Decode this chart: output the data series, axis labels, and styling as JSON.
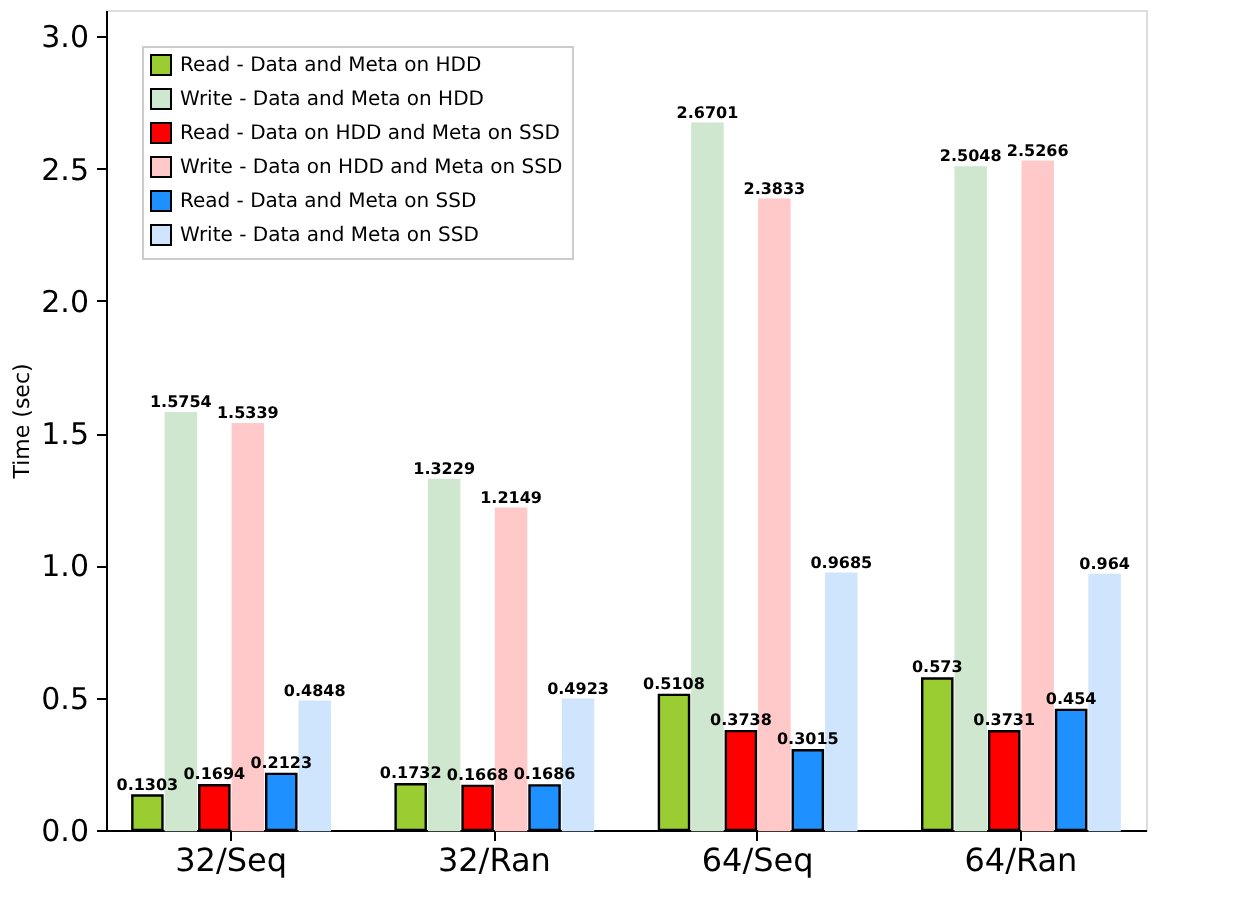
{
  "chart_data": {
    "type": "bar",
    "ylabel": "Time (sec)",
    "categories": [
      "32/Seq",
      "32/Ran",
      "64/Seq",
      "64/Ran"
    ],
    "series": [
      {
        "name": "Read - Data and Meta on HDD",
        "color": "#9acd32",
        "values": [
          0.1303,
          0.1732,
          0.5108,
          0.573
        ]
      },
      {
        "name": "Write - Data and Meta on HDD",
        "color": "#cfe6cf",
        "values": [
          1.5754,
          1.3229,
          2.6701,
          2.5048
        ]
      },
      {
        "name": "Read - Data on HDD and Meta on SSD",
        "color": "#ff0000",
        "values": [
          0.1694,
          0.1668,
          0.3738,
          0.3731
        ]
      },
      {
        "name": "Write - Data on HDD and Meta on SSD",
        "color": "#ffc9c9",
        "values": [
          1.5339,
          1.2149,
          2.3833,
          2.5266
        ]
      },
      {
        "name": "Read - Data and Meta on SSD",
        "color": "#1e90ff",
        "values": [
          0.2123,
          0.1686,
          0.3015,
          0.454
        ]
      },
      {
        "name": "Write - Data and Meta on SSD",
        "color": "#cfe5fd",
        "values": [
          0.4848,
          0.4923,
          0.9685,
          0.964
        ]
      }
    ],
    "ylim": [
      0,
      3.1
    ],
    "yticks": [
      {
        "value": 0,
        "label": "0.0"
      },
      {
        "value": 0.5,
        "label": "0.5"
      },
      {
        "value": 1,
        "label": "1.0"
      },
      {
        "value": 1.5,
        "label": "1.5"
      },
      {
        "value": 2,
        "label": "2.0"
      },
      {
        "value": 2.5,
        "label": "2.5"
      },
      {
        "value": 3,
        "label": "3.0"
      }
    ],
    "data_labels": true,
    "legend": "top left",
    "grid": false
  }
}
